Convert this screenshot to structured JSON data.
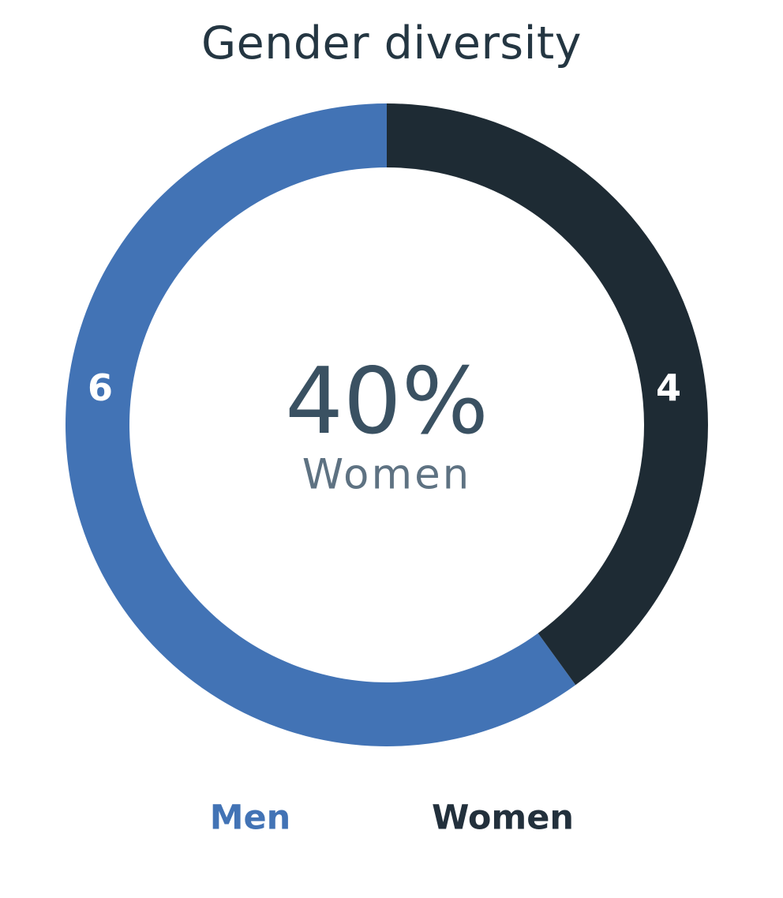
{
  "chart_data": {
    "type": "pie",
    "subtype": "donut",
    "title": "Gender diversity",
    "series": [
      {
        "name": "Men",
        "value": 6,
        "color": "#4273b5",
        "data_label": "6"
      },
      {
        "name": "Women",
        "value": 4,
        "color": "#1e2b34",
        "data_label": "4"
      }
    ],
    "total": 10,
    "center_label": {
      "percent": "40%",
      "caption": "Women"
    },
    "legend": {
      "position": "bottom",
      "items": [
        {
          "label": "Men",
          "color": "#4273b5"
        },
        {
          "label": "Women",
          "color": "#22303c"
        }
      ]
    },
    "layout_hints": {
      "start_position": "top",
      "first_series_direction": "counterclockwise",
      "inner_radius_ratio": 0.8,
      "background": "#ffffff"
    },
    "colors": {
      "title": "#243642",
      "center_percent": "#3a5162",
      "center_caption": "#5e7282",
      "data_label": "#ffffff"
    }
  }
}
